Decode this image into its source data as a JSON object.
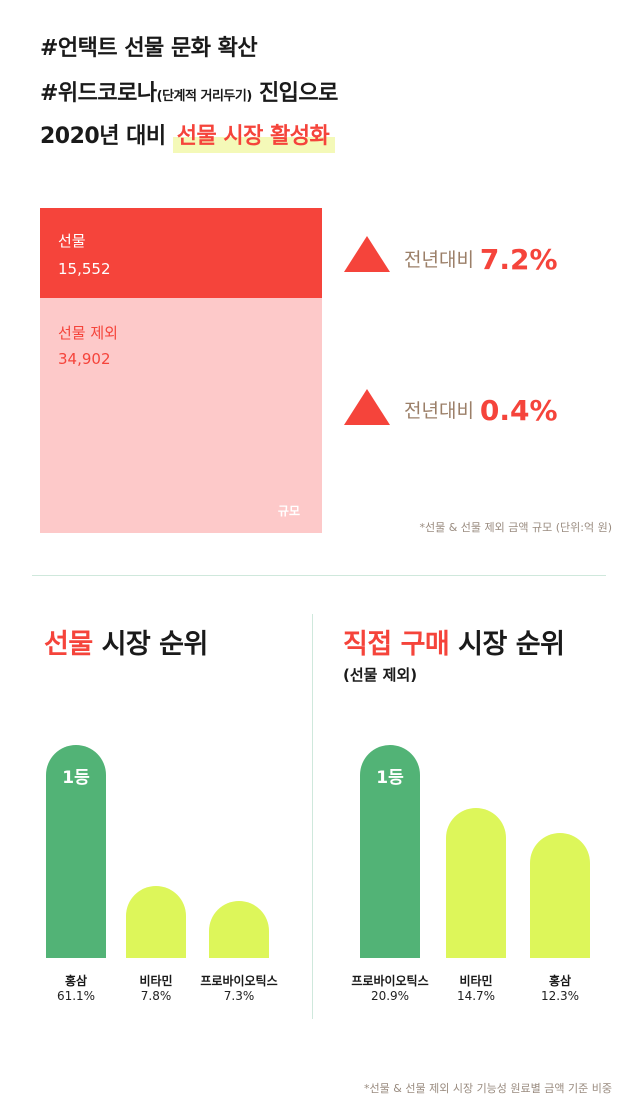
{
  "header": {
    "line1": "#언택트 선물 문화 확산",
    "line2_main": "#위드코로나",
    "line2_small": "(단계적 거리두기)",
    "line2_tail": " 진입으로",
    "line3_main": "2020년 대비 ",
    "line3_accent": "선물 시장 활성화"
  },
  "market": {
    "gift_label": "선물",
    "gift_value": "15,552",
    "other_label": "선물 제외",
    "other_value": "34,902",
    "scale_label": "규모",
    "yoy_prefix": "전년대비",
    "gift_yoy": "7.2%",
    "other_yoy": "0.4%",
    "note": "*선물 & 선물 제외 금액 규모 (단위:억 원)"
  },
  "colors": {
    "accent_red": "#f5443b",
    "pink": "#fdc9c9",
    "green": "#52b376",
    "lime": "#ddf65a"
  },
  "chart_data": [
    {
      "type": "bar",
      "title_accent": "선물",
      "title_rest": " 시장 순위",
      "rank_badge": "1등",
      "categories": [
        "홍삼",
        "비타민",
        "프로바이오틱스"
      ],
      "values": [
        61.1,
        7.8,
        7.3
      ],
      "labels": [
        "61.1%",
        "7.8%",
        "7.3%"
      ]
    },
    {
      "type": "bar",
      "title_accent": "직접 구매",
      "title_rest": " 시장 순위",
      "subtitle": "(선물 제외)",
      "rank_badge": "1등",
      "categories": [
        "프로바이오틱스",
        "비타민",
        "홍삼"
      ],
      "values": [
        20.9,
        14.7,
        12.3
      ],
      "labels": [
        "20.9%",
        "14.7%",
        "12.3%"
      ]
    }
  ],
  "footnote": "*선물 & 선물 제외 시장 기능성 원료별 금액 기준 비중"
}
